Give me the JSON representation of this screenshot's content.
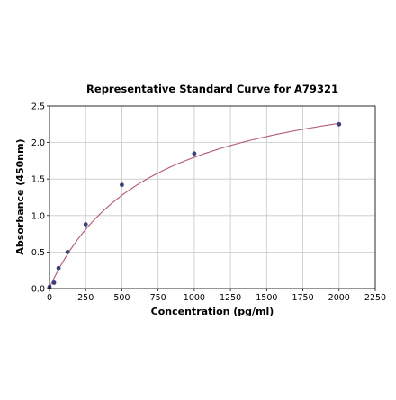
{
  "chart_data": {
    "type": "scatter",
    "title": "Representative Standard Curve for A79321",
    "xlabel": "Concentration (pg/ml)",
    "ylabel": "Absorbance (450nm)",
    "xlim": [
      0,
      2250
    ],
    "ylim": [
      0,
      2.5
    ],
    "xticks": [
      0,
      250,
      500,
      750,
      1000,
      1250,
      1500,
      1750,
      2000,
      2250
    ],
    "yticks": [
      0.0,
      0.5,
      1.0,
      1.5,
      2.0,
      2.5
    ],
    "xtick_labels": [
      "0",
      "250",
      "500",
      "750",
      "1000",
      "1250",
      "1500",
      "1750",
      "2000",
      "2250"
    ],
    "ytick_labels": [
      "0.0",
      "0.5",
      "1.0",
      "1.5",
      "2.0",
      "2.5"
    ],
    "grid": true,
    "series": [
      {
        "kind": "points",
        "x": [
          0,
          31.25,
          62.5,
          125,
          250,
          500,
          1000,
          2000
        ],
        "y": [
          0.02,
          0.08,
          0.28,
          0.5,
          0.88,
          1.42,
          1.85,
          2.25
        ],
        "color": "#3b3f7a"
      },
      {
        "kind": "fit-curve",
        "model": "4PL",
        "a": 0.01,
        "b": 1.0,
        "c": 700,
        "d": 3.05,
        "color": "#b05a6e"
      }
    ],
    "colors": {
      "grid": "#c8c8c8",
      "axis": "#000000"
    }
  }
}
